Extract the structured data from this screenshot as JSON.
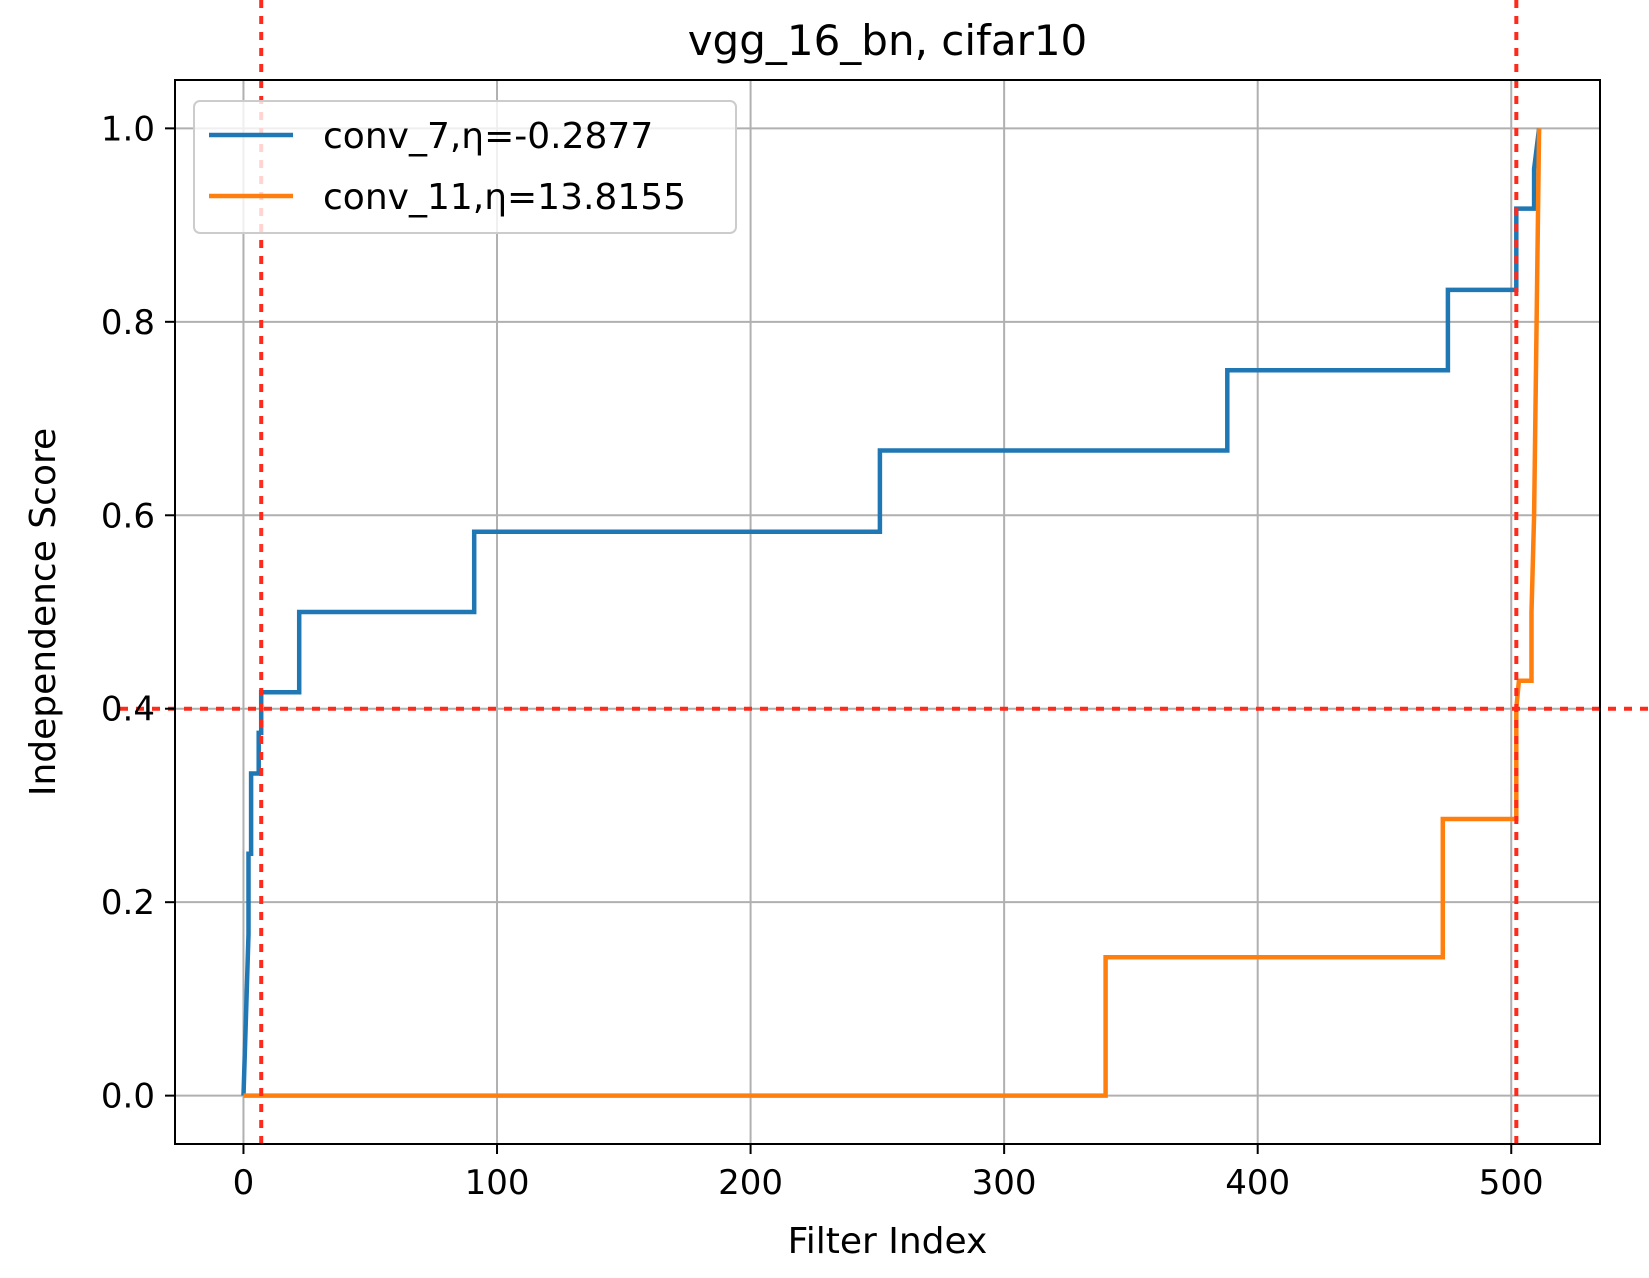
{
  "chart_data": {
    "type": "line",
    "title": "vgg_16_bn, cifar10",
    "xlabel": "Filter Index",
    "ylabel": "Independence Score",
    "xlim": [
      -27,
      535
    ],
    "ylim": [
      -0.05,
      1.05
    ],
    "xticks": [
      0,
      100,
      200,
      300,
      400,
      500
    ],
    "yticks": [
      0.0,
      0.2,
      0.4,
      0.6,
      0.8,
      1.0
    ],
    "xtick_labels": [
      "0",
      "100",
      "200",
      "300",
      "400",
      "500"
    ],
    "ytick_labels": [
      "0.0",
      "0.2",
      "0.4",
      "0.6",
      "0.8",
      "1.0"
    ],
    "grid": true,
    "legend_position": "upper-left",
    "series": [
      {
        "name": "conv_7,η=-0.2877",
        "color": "#1f77b4",
        "x": [
          0,
          1,
          2,
          2,
          3,
          3,
          4,
          4,
          5,
          5,
          6,
          6,
          7,
          7,
          22,
          22,
          91,
          91,
          251,
          251,
          388,
          388,
          475,
          475,
          502,
          502,
          509,
          509,
          511
        ],
        "y": [
          0.0,
          0.083,
          0.167,
          0.25,
          0.25,
          0.333,
          0.333,
          0.333,
          0.333,
          0.333,
          0.333,
          0.375,
          0.375,
          0.417,
          0.417,
          0.5,
          0.5,
          0.583,
          0.583,
          0.667,
          0.667,
          0.75,
          0.75,
          0.833,
          0.833,
          0.917,
          0.917,
          0.958,
          1.0
        ]
      },
      {
        "name": "conv_11,η=13.8155",
        "color": "#ff7f0e",
        "x": [
          0,
          340,
          340,
          473,
          473,
          502,
          502,
          503,
          503,
          508,
          508,
          509,
          510,
          511
        ],
        "y": [
          0.0,
          0.0,
          0.143,
          0.143,
          0.286,
          0.286,
          0.4,
          0.429,
          0.429,
          0.429,
          0.5,
          0.6,
          0.8,
          1.0
        ]
      }
    ],
    "threshold_lines": [
      {
        "orientation": "horizontal",
        "value": 0.4,
        "color": "#ff2a1a",
        "style": "dotted"
      },
      {
        "orientation": "vertical",
        "value": 7,
        "color": "#ff2a1a",
        "style": "dotted"
      },
      {
        "orientation": "vertical",
        "value": 502,
        "color": "#ff2a1a",
        "style": "dotted"
      }
    ]
  }
}
